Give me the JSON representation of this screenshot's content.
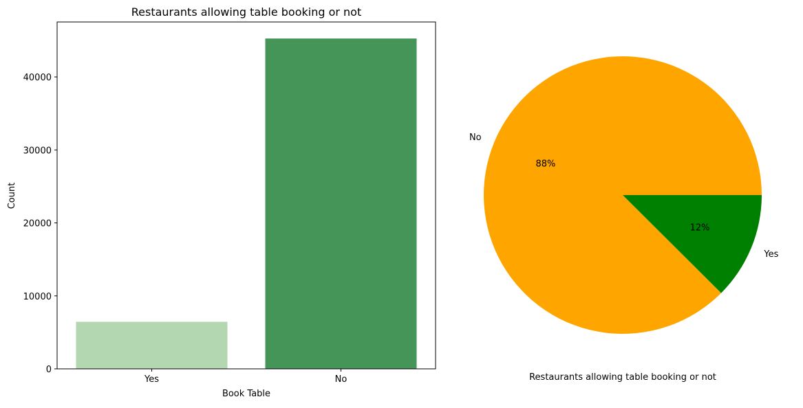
{
  "chart_data": [
    {
      "type": "bar",
      "title": "Restaurants allowing table booking or not",
      "xlabel": "Book Table",
      "ylabel": "Count",
      "categories": [
        "Yes",
        "No"
      ],
      "values": [
        6449,
        45268
      ],
      "ylim": [
        0,
        47532
      ],
      "yticks": [
        0,
        10000,
        20000,
        30000,
        40000
      ],
      "colors": [
        "#b3d7b1",
        "#459559"
      ],
      "grid": false
    },
    {
      "type": "pie",
      "xlabel": "Restaurants allowing table booking or not",
      "labels": [
        "No",
        "Yes"
      ],
      "values": [
        45268,
        6449
      ],
      "percent_labels": [
        "88%",
        "12%"
      ],
      "colors": [
        "#ffa500",
        "#008000"
      ]
    }
  ]
}
